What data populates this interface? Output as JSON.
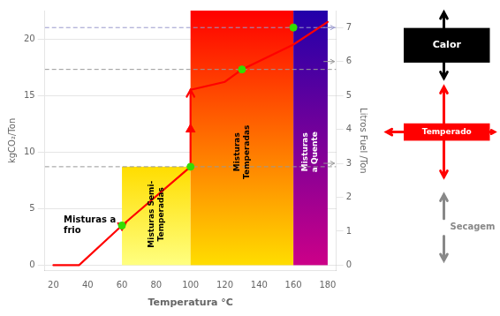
{
  "chart_data": {
    "type": "line",
    "xlabel": "Temperatura °C",
    "ylabel": "kgCO₂/Ton",
    "y2label": "Litros Fuel /Ton",
    "xlim": [
      15,
      185
    ],
    "xticks": [
      20,
      40,
      60,
      80,
      100,
      120,
      140,
      160,
      180
    ],
    "ylim": [
      -0.5,
      22.5
    ],
    "yticks": [
      0,
      5,
      10,
      15,
      20
    ],
    "y2lim": [
      -0.16666666666666666,
      7.5
    ],
    "y2ticks": [
      0,
      1,
      2,
      3,
      4,
      5,
      6,
      7
    ],
    "grid": true,
    "series": [
      {
        "type": "line",
        "color": "red",
        "x": [
          20,
          35,
          60,
          100,
          100,
          100,
          120,
          130,
          160,
          180
        ],
        "values": [
          0.0,
          0.0,
          3.5,
          8.7,
          null,
          15.5,
          16.2,
          17.3,
          19.5,
          21.5
        ]
      },
      {
        "type": "scatter",
        "marker": "circle",
        "color": "#33dd00",
        "x": [
          60,
          100,
          130,
          160
        ],
        "values": [
          3.5,
          8.7,
          17.3,
          21.0
        ]
      },
      {
        "type": "scatter",
        "marker": "triangle_down",
        "color": "red",
        "x": [
          60
        ],
        "values": [
          3.5
        ]
      },
      {
        "type": "scatter",
        "marker": "triangle_up",
        "color": "red",
        "x": [
          100
        ],
        "values": [
          12.0
        ]
      }
    ],
    "arrows": [
      {
        "x": 100,
        "y0": 8.7,
        "y1": 15.5,
        "color": "red"
      }
    ],
    "reference_lines": [
      {
        "y": 8.7,
        "color": "#999999",
        "line_style": "dashed"
      },
      {
        "y": 17.3,
        "color": "#999999",
        "line_style": "dashed"
      },
      {
        "y": 21.0,
        "color": "#9999cc",
        "line_style": "dashed"
      }
    ],
    "y2_arrows": [
      {
        "y": 3,
        "color": "#999999"
      },
      {
        "y": 6,
        "color": "#999999"
      },
      {
        "y": 7,
        "color": "#9999cc"
      }
    ],
    "zones": [
      {
        "xmin": 60,
        "xmax": 100,
        "ymin": 0,
        "ymax": 8.7,
        "colors": [
          "#ffff80",
          "#ffdd00"
        ],
        "label": "Misturas Semi-\nTemperadas",
        "label_x": 80,
        "label_y": 4.5,
        "label_color": "black"
      },
      {
        "xmin": 100,
        "xmax": 160,
        "ymin": 0,
        "ymax": 22.5,
        "colors": [
          "#ffdd00",
          "#ff0000"
        ],
        "label": "Misturas\nTemperadas",
        "label_x": 130,
        "label_y": 10,
        "label_color": "black"
      },
      {
        "xmin": 160,
        "xmax": 180,
        "ymin": 0,
        "ymax": 22.5,
        "colors": [
          "#cc0088",
          "#2200aa"
        ],
        "label": "Misturas\na Quente",
        "label_x": 170,
        "label_y": 10,
        "label_color": "white"
      }
    ],
    "annotations": [
      {
        "text": "Misturas a\nfrio",
        "x": 26,
        "y": 3.5
      }
    ],
    "side_panel": [
      {
        "text": "Calor",
        "color": "black"
      },
      {
        "text": "Temperado",
        "color": "red"
      },
      {
        "text": "Secagem",
        "color": "#888888"
      }
    ]
  }
}
